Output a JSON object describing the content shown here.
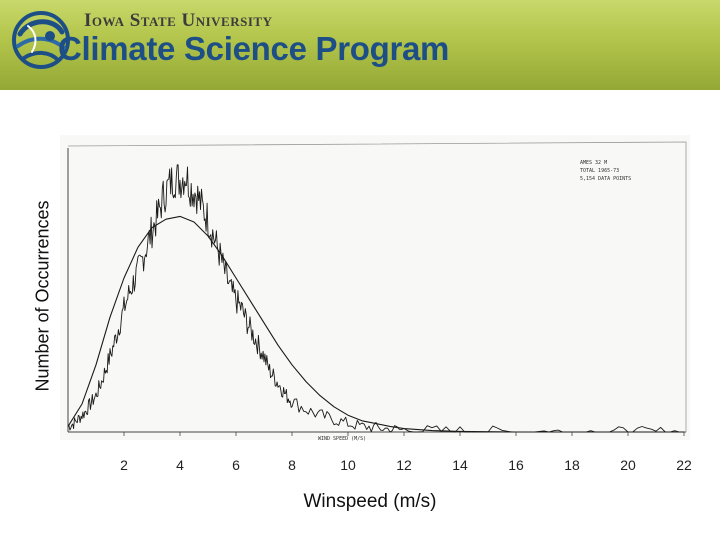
{
  "header": {
    "university": "Iowa State University",
    "program": "Climate Science Program",
    "logo_icon": "globe-swirl-icon",
    "colors": {
      "banner": "#b2c44a",
      "program_text": "#1d4f86",
      "logo": "#1d4f86"
    }
  },
  "chart_data": {
    "type": "line",
    "title": "",
    "xlabel": "Winspeed (m/s)",
    "ylabel": "Number of Occurrences",
    "xlim": [
      0,
      22
    ],
    "ylim": [
      0,
      1
    ],
    "xticks": [
      2,
      4,
      6,
      8,
      10,
      12,
      14,
      16,
      18,
      20,
      22
    ],
    "grid": false,
    "annotations": [
      "AMES 32 M",
      "TOTAL 1965-73",
      "5,154 DATA POINTS",
      "WIND SPEED (M/S)"
    ],
    "series": [
      {
        "style": "jagged",
        "color": "#1a1a1a",
        "x": [
          0,
          0.2,
          0.4,
          0.6,
          0.8,
          1.0,
          1.2,
          1.4,
          1.6,
          1.8,
          2.0,
          2.2,
          2.4,
          2.6,
          2.8,
          3.0,
          3.2,
          3.4,
          3.6,
          3.8,
          4.0,
          4.2,
          4.4,
          4.6,
          4.8,
          5.0,
          5.2,
          5.4,
          5.6,
          5.8,
          6.0,
          6.2,
          6.4,
          6.6,
          6.8,
          7.0,
          7.2,
          7.4,
          7.6,
          7.8,
          8.0,
          8.5,
          9.0,
          9.5,
          10.0,
          10.5,
          11.0,
          11.5,
          12.0,
          13.0,
          14.0,
          15.0,
          16.0,
          17.0,
          18.0,
          19.0,
          20.0,
          21.0,
          22.0
        ],
        "y": [
          0.02,
          0.03,
          0.05,
          0.07,
          0.1,
          0.13,
          0.18,
          0.24,
          0.3,
          0.37,
          0.44,
          0.5,
          0.55,
          0.6,
          0.66,
          0.72,
          0.77,
          0.84,
          0.88,
          0.91,
          0.9,
          0.92,
          0.87,
          0.85,
          0.8,
          0.76,
          0.7,
          0.64,
          0.57,
          0.51,
          0.47,
          0.44,
          0.39,
          0.35,
          0.31,
          0.27,
          0.22,
          0.19,
          0.16,
          0.13,
          0.11,
          0.08,
          0.06,
          0.045,
          0.03,
          0.02,
          0.015,
          0.01,
          0.008,
          0.005,
          0.003,
          0.002,
          0.001,
          0.001,
          0,
          0,
          0,
          0,
          0
        ]
      },
      {
        "style": "smooth-fit",
        "color": "#1a1a1a",
        "x": [
          0,
          0.5,
          1.0,
          1.5,
          2.0,
          2.5,
          3.0,
          3.5,
          4.0,
          4.5,
          5.0,
          5.5,
          6.0,
          6.5,
          7.0,
          7.5,
          8.0,
          8.5,
          9.0,
          9.5,
          10.0,
          10.5,
          11.0,
          11.5,
          12.0,
          13.0,
          14.0,
          16.0,
          18.0,
          20.0,
          22.0
        ],
        "y": [
          0.02,
          0.1,
          0.24,
          0.41,
          0.55,
          0.66,
          0.73,
          0.76,
          0.77,
          0.75,
          0.7,
          0.63,
          0.55,
          0.47,
          0.39,
          0.31,
          0.24,
          0.18,
          0.13,
          0.09,
          0.06,
          0.04,
          0.03,
          0.02,
          0.012,
          0.005,
          0.002,
          0,
          0,
          0,
          0
        ]
      }
    ]
  }
}
